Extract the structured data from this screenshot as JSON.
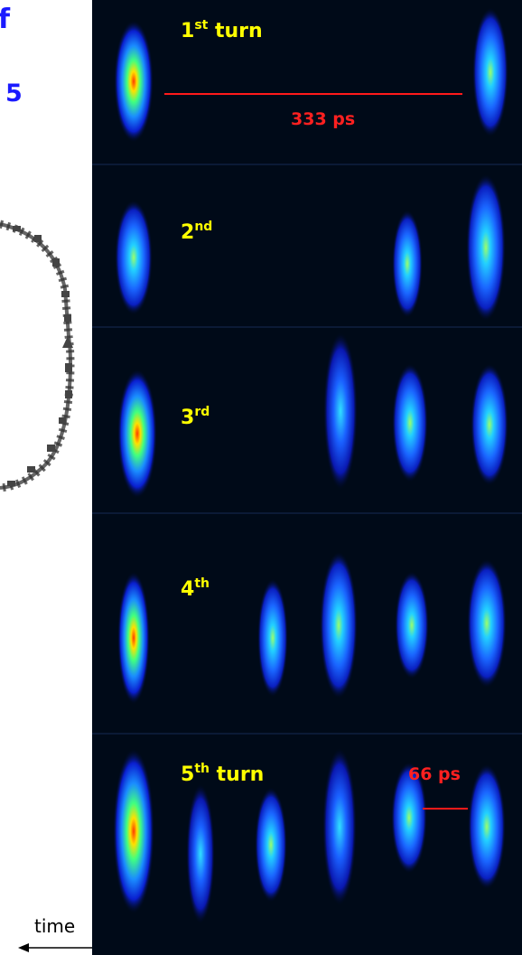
{
  "left": {
    "fragment_top": "f",
    "fragment_mid": "5",
    "time_label": "time"
  },
  "turns": [
    {
      "ord": "1",
      "sup": "st",
      "suffix": " turn"
    },
    {
      "ord": "2",
      "sup": "nd",
      "suffix": ""
    },
    {
      "ord": "3",
      "sup": "rd",
      "suffix": ""
    },
    {
      "ord": "4",
      "sup": "th",
      "suffix": ""
    },
    {
      "ord": "5",
      "sup": "th",
      "suffix": " turn"
    }
  ],
  "scale_bars": [
    {
      "label": "333 ps"
    },
    {
      "label": "66 ps"
    }
  ],
  "colors": {
    "background": "#000814",
    "label_yellow": "#ffff00",
    "scale_red": "#ff2020",
    "fragment_blue": "#1a1aff"
  }
}
